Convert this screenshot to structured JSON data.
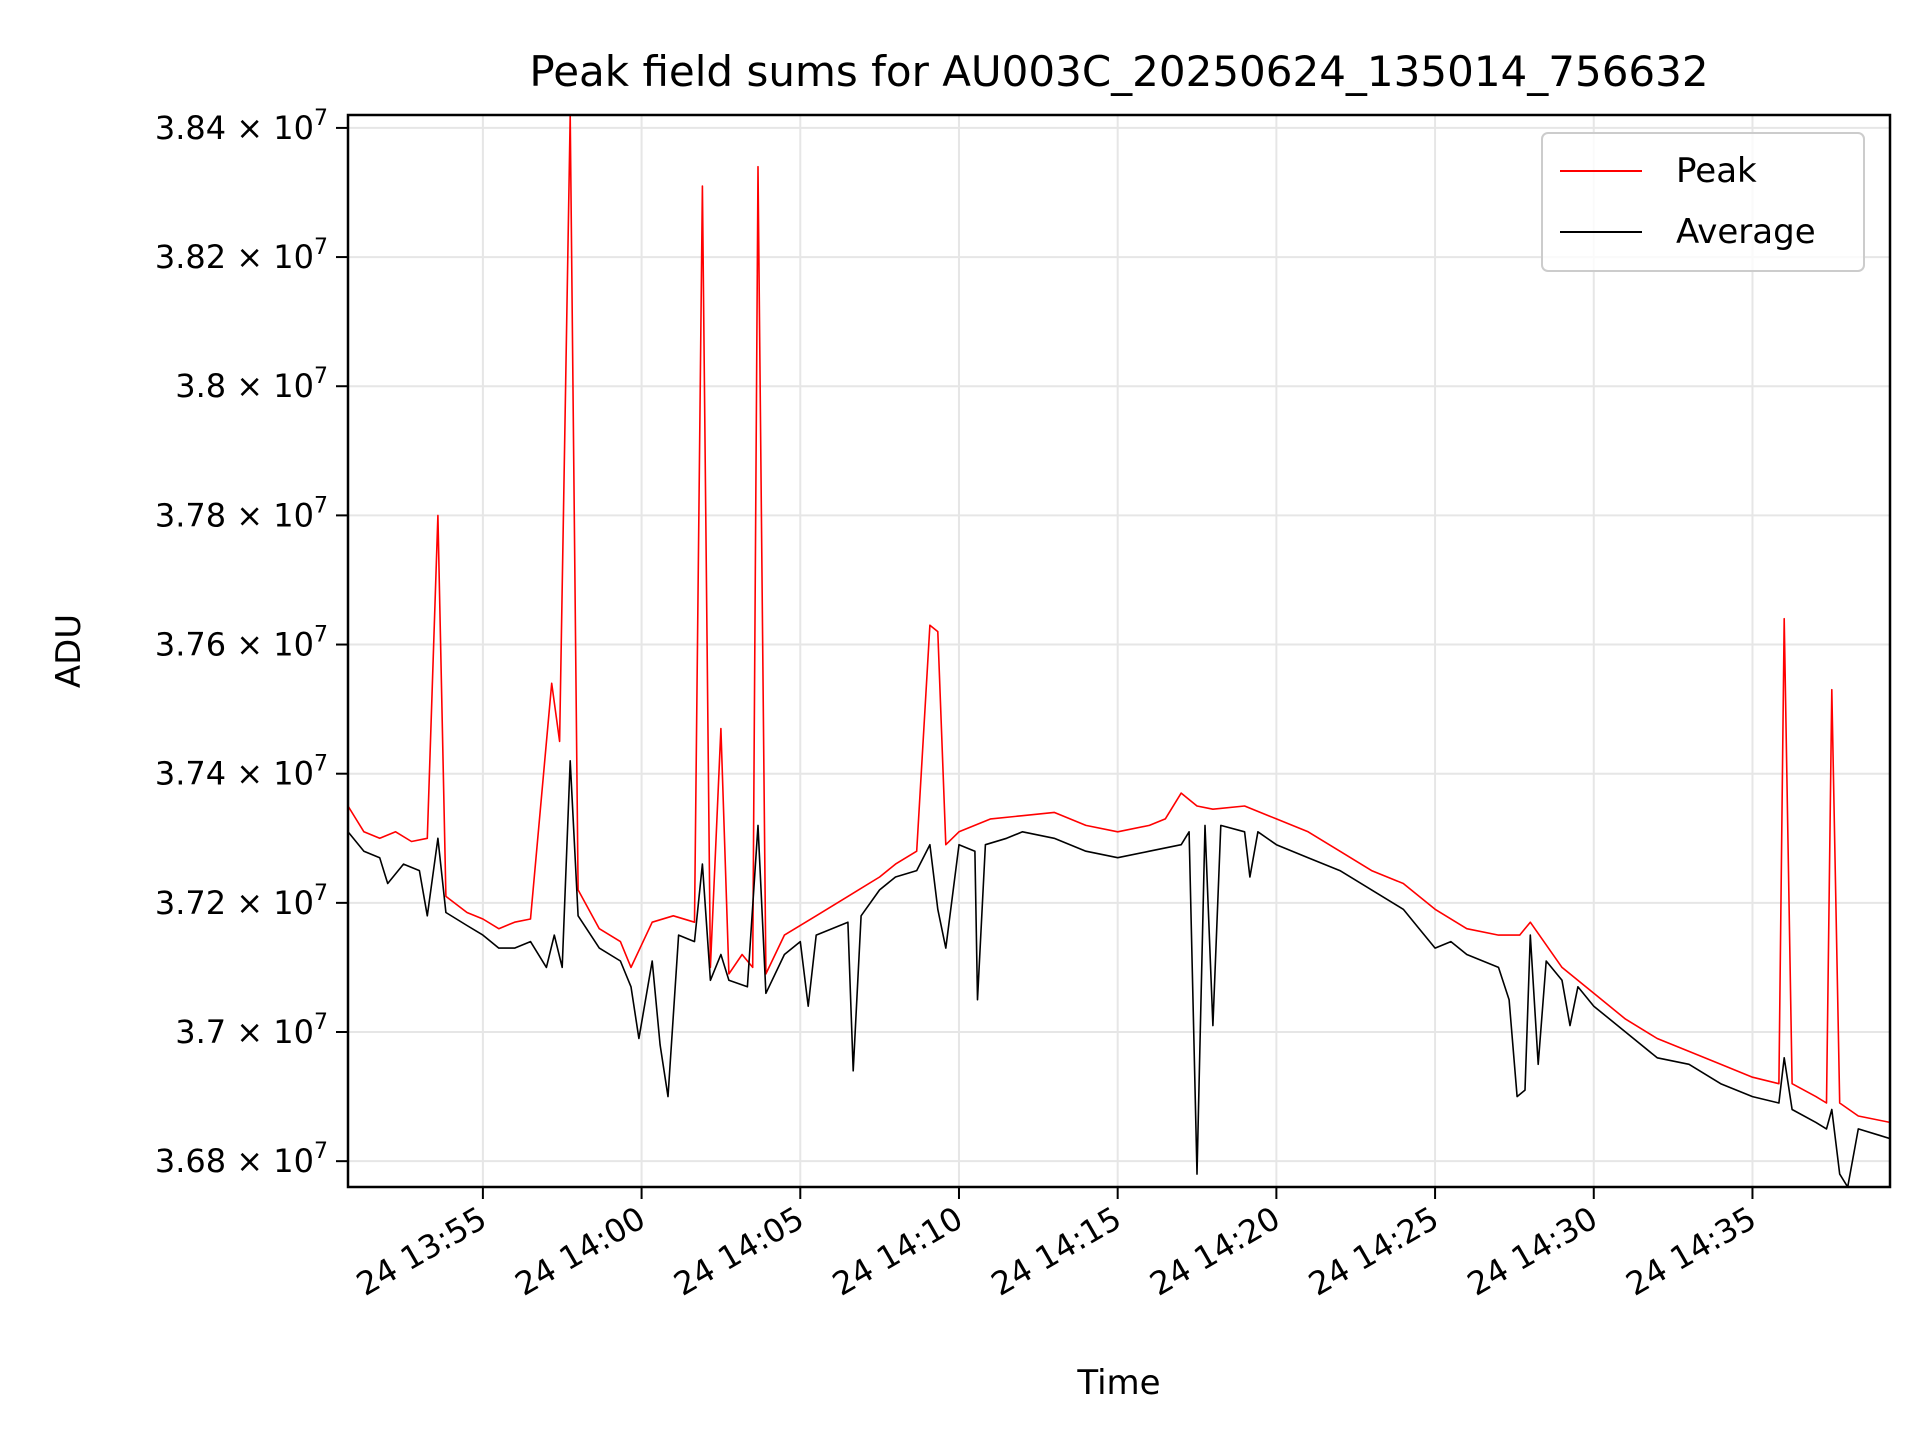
{
  "chart_data": {
    "type": "line",
    "title": "Peak field sums for AU003C_20250624_135014_756632",
    "xlabel": "Time",
    "ylabel": "ADU",
    "xlim": [
      "2025-06-24 13:50:45",
      "2025-06-24 14:39:20"
    ],
    "ylim": [
      36760000,
      38420000
    ],
    "grid": true,
    "legend_position": "top-right",
    "x_ticks": [
      {
        "value": "2025-06-24 13:55",
        "label": "24 13:55"
      },
      {
        "value": "2025-06-24 14:00",
        "label": "24 14:00"
      },
      {
        "value": "2025-06-24 14:05",
        "label": "24 14:05"
      },
      {
        "value": "2025-06-24 14:10",
        "label": "24 14:10"
      },
      {
        "value": "2025-06-24 14:15",
        "label": "24 14:15"
      },
      {
        "value": "2025-06-24 14:20",
        "label": "24 14:20"
      },
      {
        "value": "2025-06-24 14:25",
        "label": "24 14:25"
      },
      {
        "value": "2025-06-24 14:30",
        "label": "24 14:30"
      },
      {
        "value": "2025-06-24 14:35",
        "label": "24 14:35"
      }
    ],
    "y_ticks": [
      {
        "value": 36800000,
        "mantissa": "3.68",
        "exponent": "7"
      },
      {
        "value": 37000000,
        "mantissa": "3.7",
        "exponent": "7"
      },
      {
        "value": 37200000,
        "mantissa": "3.72",
        "exponent": "7"
      },
      {
        "value": 37400000,
        "mantissa": "3.74",
        "exponent": "7"
      },
      {
        "value": 37600000,
        "mantissa": "3.76",
        "exponent": "7"
      },
      {
        "value": 37800000,
        "mantissa": "3.78",
        "exponent": "7"
      },
      {
        "value": 38000000,
        "mantissa": "3.8",
        "exponent": "7"
      },
      {
        "value": 38200000,
        "mantissa": "3.82",
        "exponent": "7"
      },
      {
        "value": 38400000,
        "mantissa": "3.84",
        "exponent": "7"
      }
    ],
    "series": [
      {
        "name": "Peak",
        "color": "#ff0000",
        "points": [
          [
            "2025-06-24 13:50:45",
            37350000
          ],
          [
            "2025-06-24 13:51:15",
            37310000
          ],
          [
            "2025-06-24 13:51:45",
            37300000
          ],
          [
            "2025-06-24 13:52:15",
            37310000
          ],
          [
            "2025-06-24 13:52:45",
            37295000
          ],
          [
            "2025-06-24 13:53:15",
            37300000
          ],
          [
            "2025-06-24 13:53:35",
            37800000
          ],
          [
            "2025-06-24 13:53:50",
            37210000
          ],
          [
            "2025-06-24 13:54:30",
            37185000
          ],
          [
            "2025-06-24 13:55:00",
            37175000
          ],
          [
            "2025-06-24 13:55:30",
            37160000
          ],
          [
            "2025-06-24 13:56:00",
            37170000
          ],
          [
            "2025-06-24 13:56:30",
            37175000
          ],
          [
            "2025-06-24 13:57:10",
            37540000
          ],
          [
            "2025-06-24 13:57:25",
            37450000
          ],
          [
            "2025-06-24 13:57:45",
            38420000
          ],
          [
            "2025-06-24 13:58:00",
            37220000
          ],
          [
            "2025-06-24 13:58:40",
            37160000
          ],
          [
            "2025-06-24 13:59:20",
            37140000
          ],
          [
            "2025-06-24 13:59:40",
            37100000
          ],
          [
            "2025-06-24 14:00:20",
            37170000
          ],
          [
            "2025-06-24 14:01:00",
            37180000
          ],
          [
            "2025-06-24 14:01:40",
            37170000
          ],
          [
            "2025-06-24 14:01:55",
            38310000
          ],
          [
            "2025-06-24 14:02:10",
            37100000
          ],
          [
            "2025-06-24 14:02:30",
            37470000
          ],
          [
            "2025-06-24 14:02:45",
            37090000
          ],
          [
            "2025-06-24 14:03:10",
            37120000
          ],
          [
            "2025-06-24 14:03:30",
            37100000
          ],
          [
            "2025-06-24 14:03:40",
            38340000
          ],
          [
            "2025-06-24 14:03:55",
            37090000
          ],
          [
            "2025-06-24 14:04:30",
            37150000
          ],
          [
            "2025-06-24 14:05:30",
            37180000
          ],
          [
            "2025-06-24 14:06:30",
            37210000
          ],
          [
            "2025-06-24 14:07:30",
            37240000
          ],
          [
            "2025-06-24 14:08:00",
            37260000
          ],
          [
            "2025-06-24 14:08:40",
            37280000
          ],
          [
            "2025-06-24 14:09:05",
            37630000
          ],
          [
            "2025-06-24 14:09:20",
            37620000
          ],
          [
            "2025-06-24 14:09:35",
            37290000
          ],
          [
            "2025-06-24 14:10:00",
            37310000
          ],
          [
            "2025-06-24 14:11:00",
            37330000
          ],
          [
            "2025-06-24 14:12:00",
            37335000
          ],
          [
            "2025-06-24 14:13:00",
            37340000
          ],
          [
            "2025-06-24 14:14:00",
            37320000
          ],
          [
            "2025-06-24 14:15:00",
            37310000
          ],
          [
            "2025-06-24 14:16:00",
            37320000
          ],
          [
            "2025-06-24 14:16:30",
            37330000
          ],
          [
            "2025-06-24 14:17:00",
            37370000
          ],
          [
            "2025-06-24 14:17:30",
            37350000
          ],
          [
            "2025-06-24 14:18:00",
            37345000
          ],
          [
            "2025-06-24 14:19:00",
            37350000
          ],
          [
            "2025-06-24 14:20:00",
            37330000
          ],
          [
            "2025-06-24 14:21:00",
            37310000
          ],
          [
            "2025-06-24 14:22:00",
            37280000
          ],
          [
            "2025-06-24 14:23:00",
            37250000
          ],
          [
            "2025-06-24 14:24:00",
            37230000
          ],
          [
            "2025-06-24 14:25:00",
            37190000
          ],
          [
            "2025-06-24 14:26:00",
            37160000
          ],
          [
            "2025-06-24 14:27:00",
            37150000
          ],
          [
            "2025-06-24 14:27:40",
            37150000
          ],
          [
            "2025-06-24 14:28:00",
            37170000
          ],
          [
            "2025-06-24 14:29:00",
            37100000
          ],
          [
            "2025-06-24 14:30:00",
            37060000
          ],
          [
            "2025-06-24 14:31:00",
            37020000
          ],
          [
            "2025-06-24 14:32:00",
            36990000
          ],
          [
            "2025-06-24 14:33:00",
            36970000
          ],
          [
            "2025-06-24 14:34:00",
            36950000
          ],
          [
            "2025-06-24 14:35:00",
            36930000
          ],
          [
            "2025-06-24 14:35:50",
            36920000
          ],
          [
            "2025-06-24 14:36:00",
            37640000
          ],
          [
            "2025-06-24 14:36:15",
            36920000
          ],
          [
            "2025-06-24 14:37:00",
            36900000
          ],
          [
            "2025-06-24 14:37:20",
            36890000
          ],
          [
            "2025-06-24 14:37:30",
            37530000
          ],
          [
            "2025-06-24 14:37:45",
            36890000
          ],
          [
            "2025-06-24 14:38:20",
            36870000
          ],
          [
            "2025-06-24 14:39:20",
            36860000
          ]
        ]
      },
      {
        "name": "Average",
        "color": "#000000",
        "points": [
          [
            "2025-06-24 13:50:45",
            37310000
          ],
          [
            "2025-06-24 13:51:15",
            37280000
          ],
          [
            "2025-06-24 13:51:45",
            37270000
          ],
          [
            "2025-06-24 13:52:00",
            37230000
          ],
          [
            "2025-06-24 13:52:30",
            37260000
          ],
          [
            "2025-06-24 13:53:00",
            37250000
          ],
          [
            "2025-06-24 13:53:15",
            37180000
          ],
          [
            "2025-06-24 13:53:35",
            37300000
          ],
          [
            "2025-06-24 13:53:50",
            37185000
          ],
          [
            "2025-06-24 13:54:30",
            37165000
          ],
          [
            "2025-06-24 13:55:00",
            37150000
          ],
          [
            "2025-06-24 13:55:30",
            37130000
          ],
          [
            "2025-06-24 13:56:00",
            37130000
          ],
          [
            "2025-06-24 13:56:30",
            37140000
          ],
          [
            "2025-06-24 13:57:00",
            37100000
          ],
          [
            "2025-06-24 13:57:15",
            37150000
          ],
          [
            "2025-06-24 13:57:30",
            37100000
          ],
          [
            "2025-06-24 13:57:45",
            37420000
          ],
          [
            "2025-06-24 13:58:00",
            37180000
          ],
          [
            "2025-06-24 13:58:40",
            37130000
          ],
          [
            "2025-06-24 13:59:20",
            37110000
          ],
          [
            "2025-06-24 13:59:40",
            37070000
          ],
          [
            "2025-06-24 13:59:55",
            36990000
          ],
          [
            "2025-06-24 14:00:20",
            37110000
          ],
          [
            "2025-06-24 14:00:35",
            36980000
          ],
          [
            "2025-06-24 14:00:50",
            36900000
          ],
          [
            "2025-06-24 14:01:10",
            37150000
          ],
          [
            "2025-06-24 14:01:40",
            37140000
          ],
          [
            "2025-06-24 14:01:55",
            37260000
          ],
          [
            "2025-06-24 14:02:10",
            37080000
          ],
          [
            "2025-06-24 14:02:30",
            37120000
          ],
          [
            "2025-06-24 14:02:45",
            37080000
          ],
          [
            "2025-06-24 14:03:20",
            37070000
          ],
          [
            "2025-06-24 14:03:40",
            37320000
          ],
          [
            "2025-06-24 14:03:55",
            37060000
          ],
          [
            "2025-06-24 14:04:30",
            37120000
          ],
          [
            "2025-06-24 14:05:00",
            37140000
          ],
          [
            "2025-06-24 14:05:15",
            37040000
          ],
          [
            "2025-06-24 14:05:30",
            37150000
          ],
          [
            "2025-06-24 14:06:30",
            37170000
          ],
          [
            "2025-06-24 14:06:40",
            36940000
          ],
          [
            "2025-06-24 14:06:55",
            37180000
          ],
          [
            "2025-06-24 14:07:30",
            37220000
          ],
          [
            "2025-06-24 14:08:00",
            37240000
          ],
          [
            "2025-06-24 14:08:40",
            37250000
          ],
          [
            "2025-06-24 14:09:05",
            37290000
          ],
          [
            "2025-06-24 14:09:20",
            37190000
          ],
          [
            "2025-06-24 14:09:35",
            37130000
          ],
          [
            "2025-06-24 14:10:00",
            37290000
          ],
          [
            "2025-06-24 14:10:30",
            37280000
          ],
          [
            "2025-06-24 14:10:35",
            37050000
          ],
          [
            "2025-06-24 14:10:50",
            37290000
          ],
          [
            "2025-06-24 14:11:30",
            37300000
          ],
          [
            "2025-06-24 14:12:00",
            37310000
          ],
          [
            "2025-06-24 14:13:00",
            37300000
          ],
          [
            "2025-06-24 14:14:00",
            37280000
          ],
          [
            "2025-06-24 14:15:00",
            37270000
          ],
          [
            "2025-06-24 14:16:00",
            37280000
          ],
          [
            "2025-06-24 14:17:00",
            37290000
          ],
          [
            "2025-06-24 14:17:15",
            37310000
          ],
          [
            "2025-06-24 14:17:30",
            36780000
          ],
          [
            "2025-06-24 14:17:45",
            37320000
          ],
          [
            "2025-06-24 14:18:00",
            37010000
          ],
          [
            "2025-06-24 14:18:15",
            37320000
          ],
          [
            "2025-06-24 14:19:00",
            37310000
          ],
          [
            "2025-06-24 14:19:10",
            37240000
          ],
          [
            "2025-06-24 14:19:25",
            37310000
          ],
          [
            "2025-06-24 14:20:00",
            37290000
          ],
          [
            "2025-06-24 14:21:00",
            37270000
          ],
          [
            "2025-06-24 14:22:00",
            37250000
          ],
          [
            "2025-06-24 14:23:00",
            37220000
          ],
          [
            "2025-06-24 14:24:00",
            37190000
          ],
          [
            "2025-06-24 14:24:30",
            37160000
          ],
          [
            "2025-06-24 14:25:00",
            37130000
          ],
          [
            "2025-06-24 14:25:30",
            37140000
          ],
          [
            "2025-06-24 14:26:00",
            37120000
          ],
          [
            "2025-06-24 14:27:00",
            37100000
          ],
          [
            "2025-06-24 14:27:20",
            37050000
          ],
          [
            "2025-06-24 14:27:35",
            36900000
          ],
          [
            "2025-06-24 14:27:50",
            36910000
          ],
          [
            "2025-06-24 14:28:00",
            37150000
          ],
          [
            "2025-06-24 14:28:15",
            36950000
          ],
          [
            "2025-06-24 14:28:30",
            37110000
          ],
          [
            "2025-06-24 14:29:00",
            37080000
          ],
          [
            "2025-06-24 14:29:15",
            37010000
          ],
          [
            "2025-06-24 14:29:30",
            37070000
          ],
          [
            "2025-06-24 14:30:00",
            37040000
          ],
          [
            "2025-06-24 14:31:00",
            37000000
          ],
          [
            "2025-06-24 14:32:00",
            36960000
          ],
          [
            "2025-06-24 14:33:00",
            36950000
          ],
          [
            "2025-06-24 14:34:00",
            36920000
          ],
          [
            "2025-06-24 14:35:00",
            36900000
          ],
          [
            "2025-06-24 14:35:50",
            36890000
          ],
          [
            "2025-06-24 14:36:00",
            36960000
          ],
          [
            "2025-06-24 14:36:15",
            36880000
          ],
          [
            "2025-06-24 14:37:00",
            36860000
          ],
          [
            "2025-06-24 14:37:20",
            36850000
          ],
          [
            "2025-06-24 14:37:30",
            36880000
          ],
          [
            "2025-06-24 14:37:45",
            36780000
          ],
          [
            "2025-06-24 14:38:00",
            36760000
          ],
          [
            "2025-06-24 14:38:20",
            36850000
          ],
          [
            "2025-06-24 14:39:00",
            36840000
          ],
          [
            "2025-06-24 14:39:20",
            36835000
          ]
        ]
      }
    ]
  }
}
